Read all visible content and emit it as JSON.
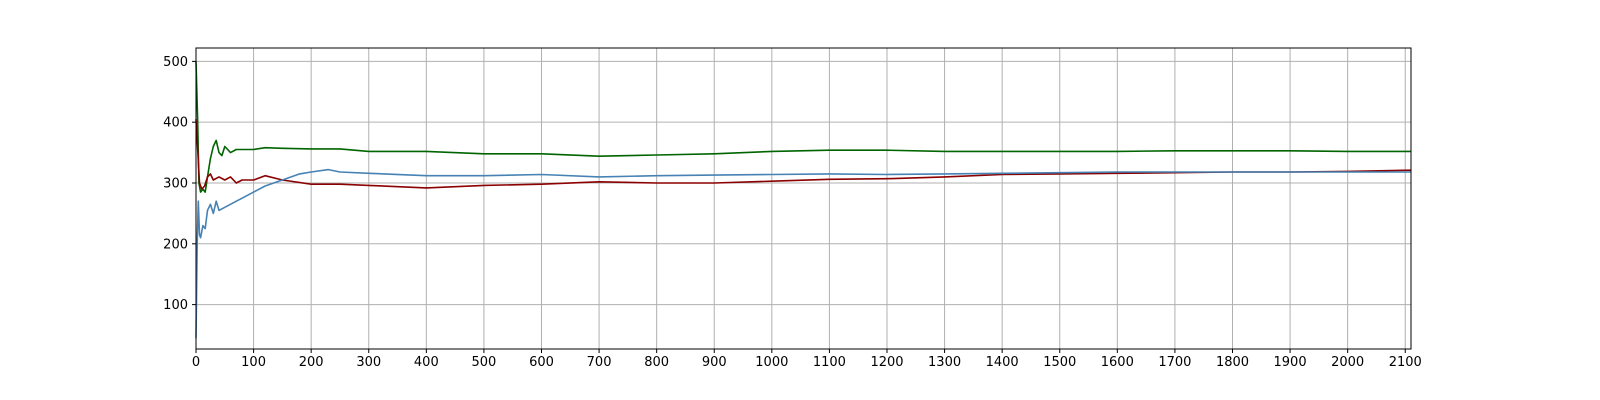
{
  "chart_data": {
    "type": "line",
    "title": "",
    "xlabel": "",
    "ylabel": "",
    "xlim": [
      0,
      2110
    ],
    "ylim": [
      27,
      522
    ],
    "grid": true,
    "x_ticks": [
      0,
      100,
      200,
      300,
      400,
      500,
      600,
      700,
      800,
      900,
      1000,
      1100,
      1200,
      1300,
      1400,
      1500,
      1600,
      1700,
      1800,
      1900,
      2000,
      2100
    ],
    "y_ticks": [
      100,
      200,
      300,
      400,
      500
    ],
    "series": [
      {
        "color": "#006400",
        "x": [
          0,
          3,
          5,
          8,
          12,
          16,
          20,
          25,
          30,
          35,
          40,
          45,
          50,
          55,
          60,
          70,
          80,
          100,
          120,
          150,
          200,
          250,
          300,
          400,
          500,
          600,
          700,
          800,
          900,
          1000,
          1100,
          1200,
          1300,
          1400,
          1500,
          1600,
          1700,
          1800,
          1900,
          2000,
          2110
        ],
        "y": [
          500,
          400,
          300,
          285,
          290,
          285,
          310,
          340,
          360,
          370,
          350,
          345,
          360,
          355,
          350,
          355,
          355,
          355,
          358,
          357,
          356,
          356,
          352,
          352,
          348,
          348,
          344,
          346,
          348,
          352,
          354,
          354,
          352,
          352,
          352,
          352,
          353,
          353,
          353,
          352,
          352
        ]
      },
      {
        "color": "#8b0000",
        "x": [
          0,
          3,
          6,
          10,
          15,
          20,
          25,
          30,
          40,
          50,
          60,
          70,
          80,
          100,
          120,
          150,
          200,
          250,
          300,
          400,
          500,
          600,
          700,
          800,
          900,
          1000,
          1100,
          1200,
          1300,
          1400,
          1500,
          1600,
          1700,
          1800,
          1900,
          2000,
          2110
        ],
        "y": [
          405,
          355,
          300,
          290,
          295,
          310,
          315,
          305,
          310,
          305,
          310,
          300,
          305,
          305,
          312,
          305,
          298,
          298,
          296,
          292,
          296,
          298,
          302,
          300,
          300,
          303,
          306,
          307,
          310,
          314,
          315,
          316,
          317,
          318,
          318,
          319,
          321
        ]
      },
      {
        "color": "#4682b4",
        "x": [
          0,
          2,
          4,
          6,
          8,
          12,
          16,
          20,
          25,
          30,
          35,
          40,
          50,
          60,
          70,
          80,
          100,
          120,
          150,
          180,
          200,
          230,
          250,
          300,
          400,
          500,
          600,
          700,
          800,
          900,
          1000,
          1100,
          1200,
          1300,
          1400,
          1500,
          1600,
          1700,
          1800,
          1900,
          2000,
          2110
        ],
        "y": [
          45,
          200,
          270,
          215,
          210,
          230,
          225,
          255,
          265,
          250,
          270,
          255,
          260,
          265,
          270,
          275,
          285,
          295,
          305,
          315,
          318,
          322,
          318,
          316,
          312,
          312,
          314,
          310,
          312,
          313,
          314,
          315,
          314,
          315,
          316,
          317,
          318,
          318,
          318,
          318,
          318,
          318
        ]
      }
    ]
  }
}
